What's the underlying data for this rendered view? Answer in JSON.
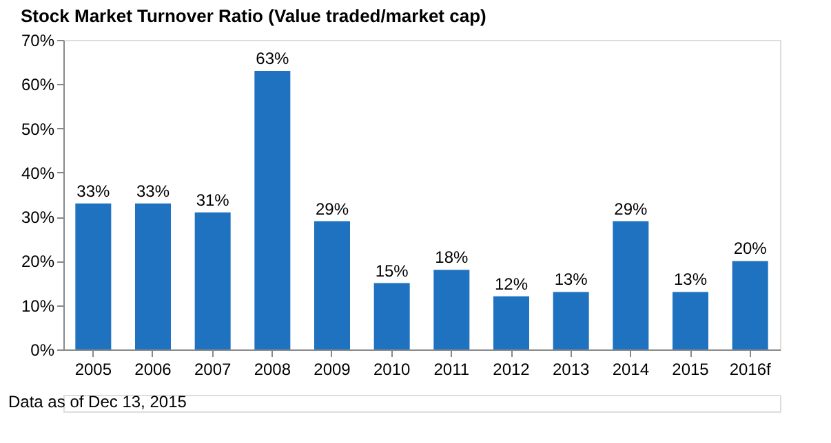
{
  "chart_data": {
    "type": "bar",
    "title": "Stock Market Turnover Ratio (Value traded/market cap)",
    "categories": [
      "2005",
      "2006",
      "2007",
      "2008",
      "2009",
      "2010",
      "2011",
      "2012",
      "2013",
      "2014",
      "2015",
      "2016f"
    ],
    "values": [
      33,
      33,
      31,
      63,
      29,
      15,
      18,
      12,
      13,
      29,
      13,
      20
    ],
    "value_labels": [
      "33%",
      "33%",
      "31%",
      "63%",
      "29%",
      "15%",
      "18%",
      "12%",
      "13%",
      "29%",
      "13%",
      "20%"
    ],
    "color": "#1f72bf",
    "ylim": [
      0,
      70
    ],
    "yticks": [
      {
        "value": 0,
        "label": "0%"
      },
      {
        "value": 10,
        "label": "10%"
      },
      {
        "value": 20,
        "label": "20%"
      },
      {
        "value": 30,
        "label": "30%"
      },
      {
        "value": 40,
        "label": "40%"
      },
      {
        "value": 50,
        "label": "50%"
      },
      {
        "value": 60,
        "label": "60%"
      },
      {
        "value": 70,
        "label": "70%"
      }
    ],
    "grid": false,
    "annotations": [
      "Data as of Dec 13, 2015"
    ]
  }
}
